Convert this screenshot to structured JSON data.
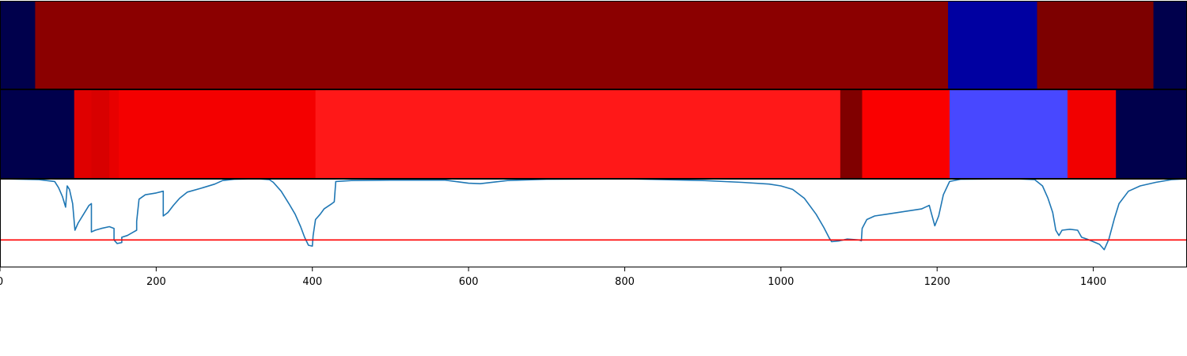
{
  "chart_data": [
    {
      "type": "heatmap",
      "panel": "top-band",
      "xlim": [
        0,
        1520
      ],
      "segments": [
        {
          "x0": 0,
          "x1": 45,
          "color": "#00004c"
        },
        {
          "x0": 45,
          "x1": 1214,
          "color": "#8b0000"
        },
        {
          "x0": 1214,
          "x1": 1328,
          "color": "#0000a1"
        },
        {
          "x0": 1328,
          "x1": 1477,
          "color": "#7d0000"
        },
        {
          "x0": 1477,
          "x1": 1520,
          "color": "#00004c"
        }
      ]
    },
    {
      "type": "heatmap",
      "panel": "middle-band",
      "xlim": [
        0,
        1520
      ],
      "segments": [
        {
          "x0": 0,
          "x1": 95,
          "color": "#00004c"
        },
        {
          "x0": 95,
          "x1": 117,
          "color": "#df0000"
        },
        {
          "x0": 117,
          "x1": 140,
          "color": "#d80000"
        },
        {
          "x0": 140,
          "x1": 152,
          "color": "#e80000"
        },
        {
          "x0": 152,
          "x1": 404,
          "color": "#f40000"
        },
        {
          "x0": 404,
          "x1": 1076,
          "color": "#ff1818"
        },
        {
          "x0": 1076,
          "x1": 1104,
          "color": "#800000"
        },
        {
          "x0": 1104,
          "x1": 1216,
          "color": "#fa0000"
        },
        {
          "x0": 1216,
          "x1": 1367,
          "color": "#4848ff"
        },
        {
          "x0": 1367,
          "x1": 1429,
          "color": "#f20000"
        },
        {
          "x0": 1429,
          "x1": 1520,
          "color": "#00004c"
        }
      ]
    },
    {
      "type": "line",
      "panel": "bottom-line",
      "xlim": [
        0,
        1520
      ],
      "ylim": [
        0,
        1
      ],
      "threshold": {
        "y": 0.31,
        "color": "#ff0000"
      },
      "series": [
        {
          "color": "#1f77b4",
          "points": [
            [
              0,
              1.0
            ],
            [
              50,
              0.99
            ],
            [
              70,
              0.97
            ],
            [
              75,
              0.9
            ],
            [
              80,
              0.8
            ],
            [
              84,
              0.68
            ],
            [
              86,
              0.92
            ],
            [
              89,
              0.88
            ],
            [
              93,
              0.72
            ],
            [
              96,
              0.42
            ],
            [
              100,
              0.5
            ],
            [
              107,
              0.6
            ],
            [
              114,
              0.7
            ],
            [
              117,
              0.72
            ],
            [
              117,
              0.4
            ],
            [
              122,
              0.42
            ],
            [
              130,
              0.44
            ],
            [
              140,
              0.46
            ],
            [
              146,
              0.44
            ],
            [
              146,
              0.31
            ],
            [
              150,
              0.27
            ],
            [
              156,
              0.28
            ],
            [
              156,
              0.34
            ],
            [
              163,
              0.36
            ],
            [
              171,
              0.4
            ],
            [
              175,
              0.42
            ],
            [
              175,
              0.52
            ],
            [
              178,
              0.77
            ],
            [
              186,
              0.82
            ],
            [
              200,
              0.84
            ],
            [
              209,
              0.86
            ],
            [
              209,
              0.58
            ],
            [
              215,
              0.62
            ],
            [
              222,
              0.7
            ],
            [
              230,
              0.78
            ],
            [
              240,
              0.85
            ],
            [
              260,
              0.9
            ],
            [
              275,
              0.94
            ],
            [
              285,
              0.98
            ],
            [
              300,
              0.995
            ],
            [
              330,
              1.0
            ],
            [
              345,
              0.99
            ],
            [
              350,
              0.96
            ],
            [
              360,
              0.86
            ],
            [
              370,
              0.72
            ],
            [
              378,
              0.6
            ],
            [
              385,
              0.46
            ],
            [
              390,
              0.34
            ],
            [
              395,
              0.25
            ],
            [
              400,
              0.24
            ],
            [
              401,
              0.36
            ],
            [
              404,
              0.54
            ],
            [
              410,
              0.6
            ],
            [
              415,
              0.66
            ],
            [
              425,
              0.72
            ],
            [
              428,
              0.74
            ],
            [
              430,
              0.97
            ],
            [
              450,
              0.98
            ],
            [
              500,
              0.985
            ],
            [
              570,
              0.985
            ],
            [
              600,
              0.95
            ],
            [
              615,
              0.945
            ],
            [
              650,
              0.98
            ],
            [
              700,
              0.995
            ],
            [
              800,
              1.0
            ],
            [
              900,
              0.98
            ],
            [
              950,
              0.96
            ],
            [
              985,
              0.94
            ],
            [
              1000,
              0.92
            ],
            [
              1015,
              0.88
            ],
            [
              1030,
              0.78
            ],
            [
              1045,
              0.6
            ],
            [
              1055,
              0.45
            ],
            [
              1062,
              0.33
            ],
            [
              1065,
              0.29
            ],
            [
              1075,
              0.3
            ],
            [
              1085,
              0.32
            ],
            [
              1100,
              0.31
            ],
            [
              1103,
              0.3
            ],
            [
              1104,
              0.44
            ],
            [
              1110,
              0.54
            ],
            [
              1120,
              0.58
            ],
            [
              1135,
              0.6
            ],
            [
              1150,
              0.62
            ],
            [
              1165,
              0.64
            ],
            [
              1180,
              0.66
            ],
            [
              1185,
              0.68
            ],
            [
              1190,
              0.7
            ],
            [
              1193,
              0.6
            ],
            [
              1197,
              0.47
            ],
            [
              1202,
              0.58
            ],
            [
              1208,
              0.82
            ],
            [
              1216,
              0.97
            ],
            [
              1230,
              0.995
            ],
            [
              1300,
              1.0
            ],
            [
              1325,
              0.99
            ],
            [
              1335,
              0.92
            ],
            [
              1342,
              0.78
            ],
            [
              1348,
              0.62
            ],
            [
              1352,
              0.42
            ],
            [
              1356,
              0.36
            ],
            [
              1360,
              0.42
            ],
            [
              1370,
              0.43
            ],
            [
              1380,
              0.42
            ],
            [
              1385,
              0.34
            ],
            [
              1392,
              0.32
            ],
            [
              1400,
              0.29
            ],
            [
              1408,
              0.26
            ],
            [
              1414,
              0.2
            ],
            [
              1420,
              0.32
            ],
            [
              1427,
              0.55
            ],
            [
              1433,
              0.72
            ],
            [
              1445,
              0.86
            ],
            [
              1460,
              0.92
            ],
            [
              1480,
              0.96
            ],
            [
              1500,
              0.99
            ],
            [
              1520,
              1.0
            ]
          ]
        }
      ]
    }
  ],
  "x_axis": {
    "ticks": [
      0,
      200,
      400,
      600,
      800,
      1000,
      1200,
      1400
    ],
    "tick_labels": [
      "0",
      "200",
      "400",
      "600",
      "800",
      "1000",
      "1200",
      "1400"
    ]
  }
}
